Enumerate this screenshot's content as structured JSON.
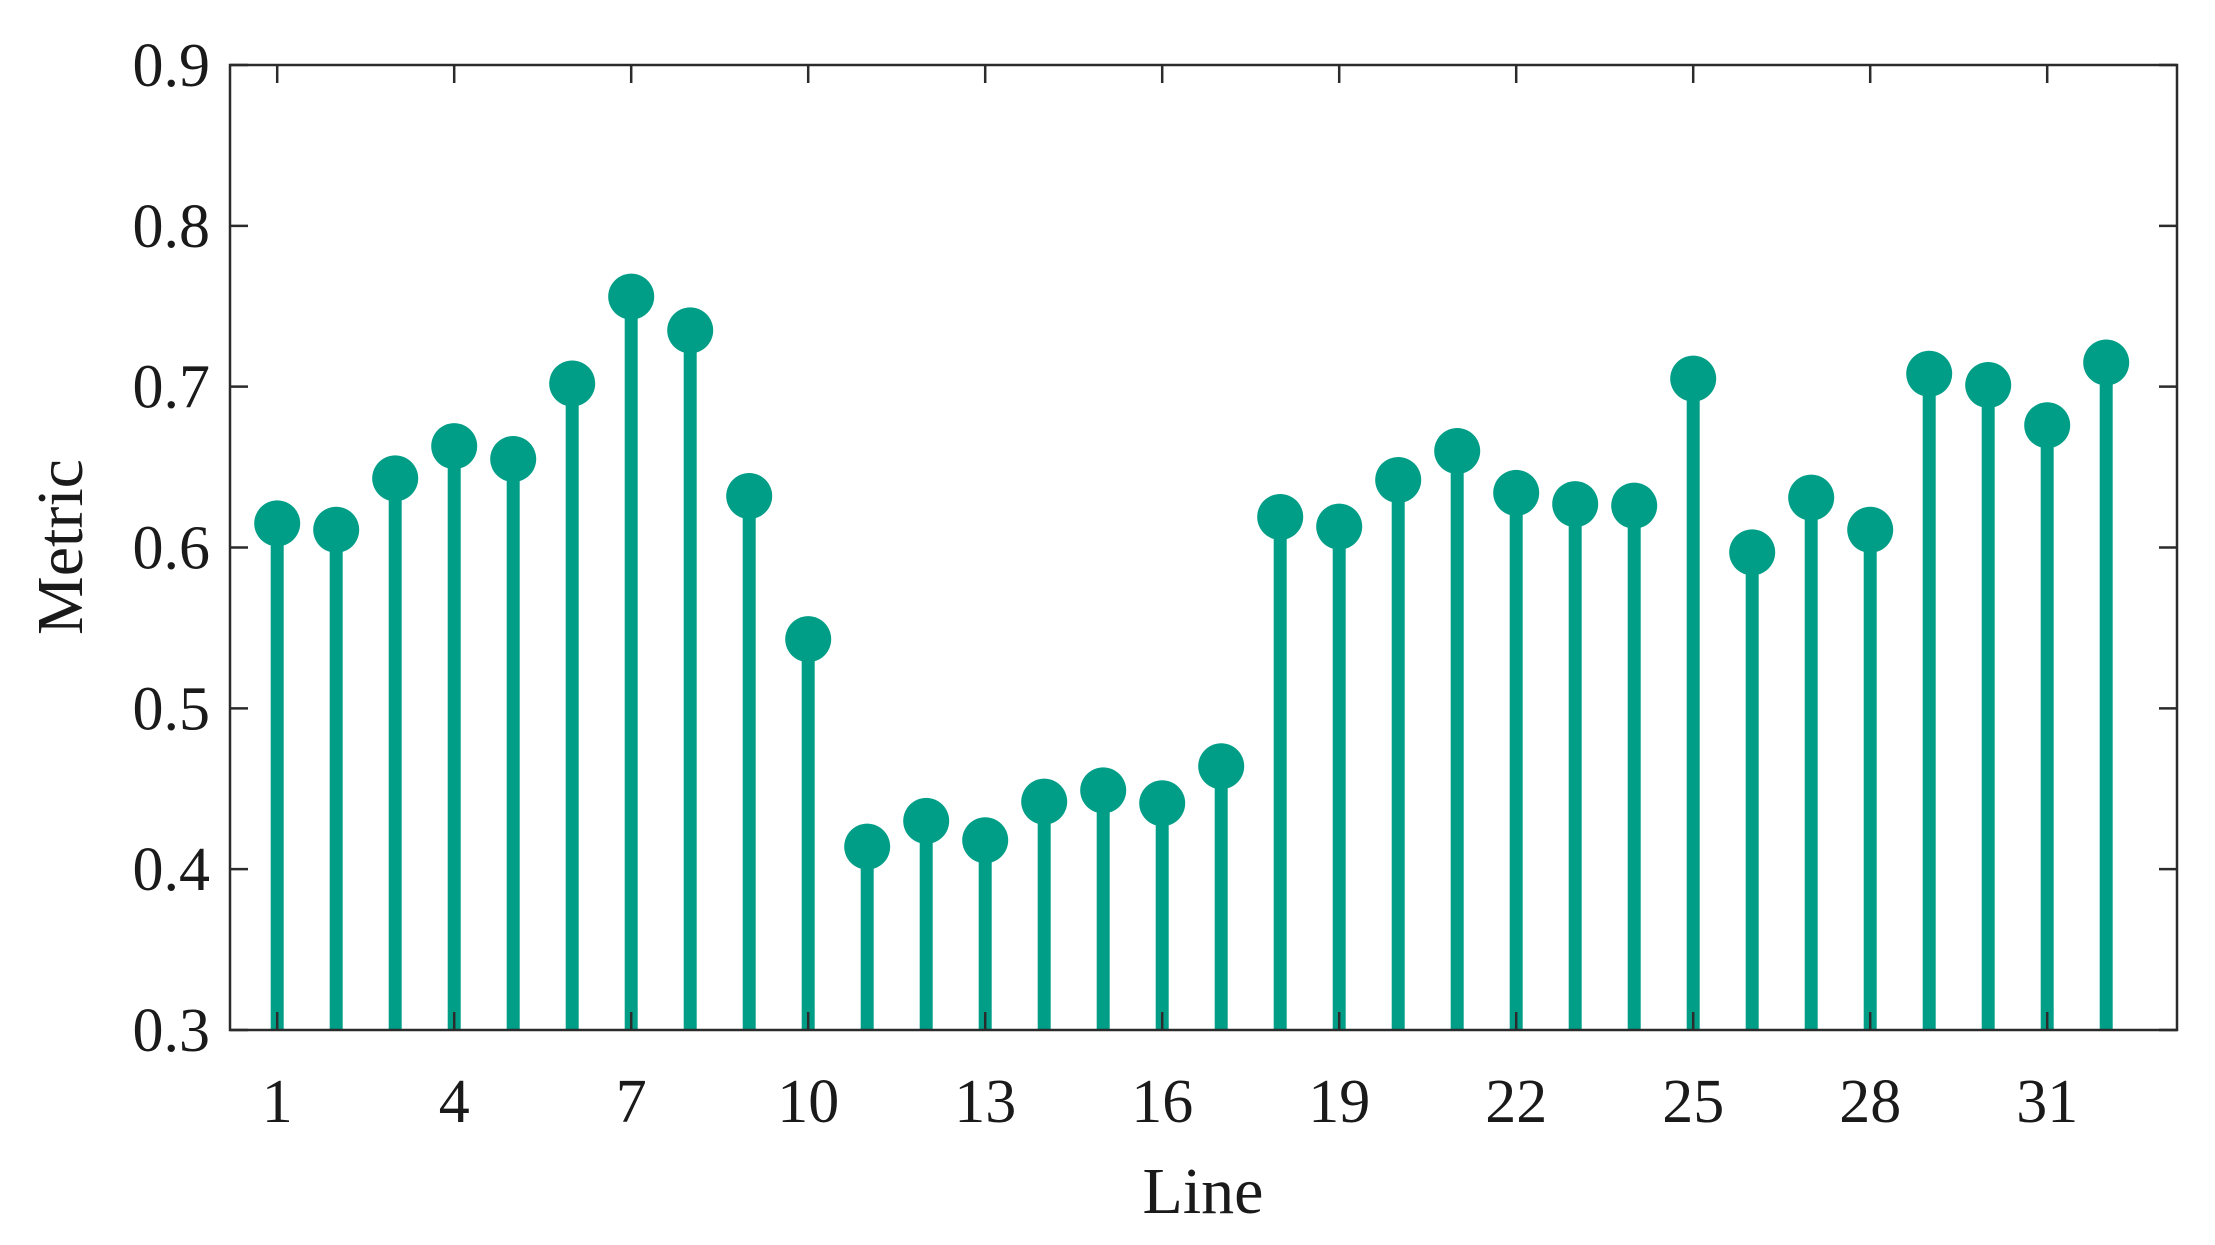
{
  "chart_data": {
    "type": "stem",
    "xlabel": "Line",
    "ylabel": "Metric",
    "xlim": [
      0.2,
      33.2
    ],
    "ylim": [
      0.3,
      0.9
    ],
    "x_ticks": [
      1,
      4,
      7,
      10,
      13,
      16,
      19,
      22,
      25,
      28,
      31
    ],
    "y_ticks": [
      "0.3",
      "0.4",
      "0.5",
      "0.6",
      "0.7",
      "0.8",
      "0.9"
    ],
    "grid": false,
    "legend": "none",
    "color": "#009e87",
    "x": [
      1,
      2,
      3,
      4,
      5,
      6,
      7,
      8,
      9,
      10,
      11,
      12,
      13,
      14,
      15,
      16,
      17,
      18,
      19,
      20,
      21,
      22,
      23,
      24,
      25,
      26,
      27,
      28,
      29,
      30,
      31,
      32
    ],
    "values": [
      0.615,
      0.611,
      0.643,
      0.663,
      0.655,
      0.702,
      0.756,
      0.735,
      0.632,
      0.543,
      0.414,
      0.43,
      0.418,
      0.442,
      0.449,
      0.441,
      0.464,
      0.619,
      0.613,
      0.642,
      0.66,
      0.634,
      0.627,
      0.626,
      0.705,
      0.597,
      0.631,
      0.611,
      0.708,
      0.701,
      0.676,
      0.715
    ]
  }
}
